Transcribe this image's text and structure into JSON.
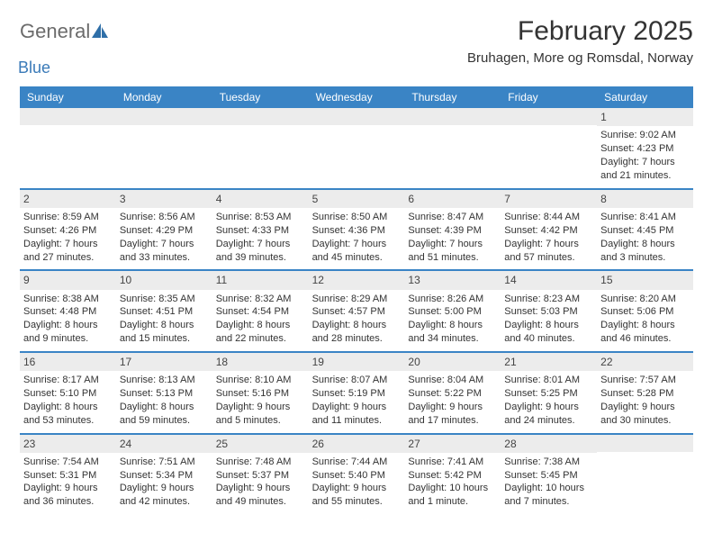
{
  "logo": {
    "text1": "General",
    "text2": "Blue"
  },
  "title": "February 2025",
  "location": "Bruhagen, More og Romsdal, Norway",
  "colors": {
    "header_bg": "#3a84c5",
    "header_text": "#ffffff",
    "daynum_bg": "#ececec",
    "border": "#3a84c5",
    "body_text": "#333333",
    "logo_gray": "#6b6b6b",
    "logo_blue": "#3a7ab8"
  },
  "weekdays": [
    "Sunday",
    "Monday",
    "Tuesday",
    "Wednesday",
    "Thursday",
    "Friday",
    "Saturday"
  ],
  "weeks": [
    [
      {
        "n": "",
        "sr": "",
        "ss": "",
        "dl": ""
      },
      {
        "n": "",
        "sr": "",
        "ss": "",
        "dl": ""
      },
      {
        "n": "",
        "sr": "",
        "ss": "",
        "dl": ""
      },
      {
        "n": "",
        "sr": "",
        "ss": "",
        "dl": ""
      },
      {
        "n": "",
        "sr": "",
        "ss": "",
        "dl": ""
      },
      {
        "n": "",
        "sr": "",
        "ss": "",
        "dl": ""
      },
      {
        "n": "1",
        "sr": "Sunrise: 9:02 AM",
        "ss": "Sunset: 4:23 PM",
        "dl": "Daylight: 7 hours and 21 minutes."
      }
    ],
    [
      {
        "n": "2",
        "sr": "Sunrise: 8:59 AM",
        "ss": "Sunset: 4:26 PM",
        "dl": "Daylight: 7 hours and 27 minutes."
      },
      {
        "n": "3",
        "sr": "Sunrise: 8:56 AM",
        "ss": "Sunset: 4:29 PM",
        "dl": "Daylight: 7 hours and 33 minutes."
      },
      {
        "n": "4",
        "sr": "Sunrise: 8:53 AM",
        "ss": "Sunset: 4:33 PM",
        "dl": "Daylight: 7 hours and 39 minutes."
      },
      {
        "n": "5",
        "sr": "Sunrise: 8:50 AM",
        "ss": "Sunset: 4:36 PM",
        "dl": "Daylight: 7 hours and 45 minutes."
      },
      {
        "n": "6",
        "sr": "Sunrise: 8:47 AM",
        "ss": "Sunset: 4:39 PM",
        "dl": "Daylight: 7 hours and 51 minutes."
      },
      {
        "n": "7",
        "sr": "Sunrise: 8:44 AM",
        "ss": "Sunset: 4:42 PM",
        "dl": "Daylight: 7 hours and 57 minutes."
      },
      {
        "n": "8",
        "sr": "Sunrise: 8:41 AM",
        "ss": "Sunset: 4:45 PM",
        "dl": "Daylight: 8 hours and 3 minutes."
      }
    ],
    [
      {
        "n": "9",
        "sr": "Sunrise: 8:38 AM",
        "ss": "Sunset: 4:48 PM",
        "dl": "Daylight: 8 hours and 9 minutes."
      },
      {
        "n": "10",
        "sr": "Sunrise: 8:35 AM",
        "ss": "Sunset: 4:51 PM",
        "dl": "Daylight: 8 hours and 15 minutes."
      },
      {
        "n": "11",
        "sr": "Sunrise: 8:32 AM",
        "ss": "Sunset: 4:54 PM",
        "dl": "Daylight: 8 hours and 22 minutes."
      },
      {
        "n": "12",
        "sr": "Sunrise: 8:29 AM",
        "ss": "Sunset: 4:57 PM",
        "dl": "Daylight: 8 hours and 28 minutes."
      },
      {
        "n": "13",
        "sr": "Sunrise: 8:26 AM",
        "ss": "Sunset: 5:00 PM",
        "dl": "Daylight: 8 hours and 34 minutes."
      },
      {
        "n": "14",
        "sr": "Sunrise: 8:23 AM",
        "ss": "Sunset: 5:03 PM",
        "dl": "Daylight: 8 hours and 40 minutes."
      },
      {
        "n": "15",
        "sr": "Sunrise: 8:20 AM",
        "ss": "Sunset: 5:06 PM",
        "dl": "Daylight: 8 hours and 46 minutes."
      }
    ],
    [
      {
        "n": "16",
        "sr": "Sunrise: 8:17 AM",
        "ss": "Sunset: 5:10 PM",
        "dl": "Daylight: 8 hours and 53 minutes."
      },
      {
        "n": "17",
        "sr": "Sunrise: 8:13 AM",
        "ss": "Sunset: 5:13 PM",
        "dl": "Daylight: 8 hours and 59 minutes."
      },
      {
        "n": "18",
        "sr": "Sunrise: 8:10 AM",
        "ss": "Sunset: 5:16 PM",
        "dl": "Daylight: 9 hours and 5 minutes."
      },
      {
        "n": "19",
        "sr": "Sunrise: 8:07 AM",
        "ss": "Sunset: 5:19 PM",
        "dl": "Daylight: 9 hours and 11 minutes."
      },
      {
        "n": "20",
        "sr": "Sunrise: 8:04 AM",
        "ss": "Sunset: 5:22 PM",
        "dl": "Daylight: 9 hours and 17 minutes."
      },
      {
        "n": "21",
        "sr": "Sunrise: 8:01 AM",
        "ss": "Sunset: 5:25 PM",
        "dl": "Daylight: 9 hours and 24 minutes."
      },
      {
        "n": "22",
        "sr": "Sunrise: 7:57 AM",
        "ss": "Sunset: 5:28 PM",
        "dl": "Daylight: 9 hours and 30 minutes."
      }
    ],
    [
      {
        "n": "23",
        "sr": "Sunrise: 7:54 AM",
        "ss": "Sunset: 5:31 PM",
        "dl": "Daylight: 9 hours and 36 minutes."
      },
      {
        "n": "24",
        "sr": "Sunrise: 7:51 AM",
        "ss": "Sunset: 5:34 PM",
        "dl": "Daylight: 9 hours and 42 minutes."
      },
      {
        "n": "25",
        "sr": "Sunrise: 7:48 AM",
        "ss": "Sunset: 5:37 PM",
        "dl": "Daylight: 9 hours and 49 minutes."
      },
      {
        "n": "26",
        "sr": "Sunrise: 7:44 AM",
        "ss": "Sunset: 5:40 PM",
        "dl": "Daylight: 9 hours and 55 minutes."
      },
      {
        "n": "27",
        "sr": "Sunrise: 7:41 AM",
        "ss": "Sunset: 5:42 PM",
        "dl": "Daylight: 10 hours and 1 minute."
      },
      {
        "n": "28",
        "sr": "Sunrise: 7:38 AM",
        "ss": "Sunset: 5:45 PM",
        "dl": "Daylight: 10 hours and 7 minutes."
      },
      {
        "n": "",
        "sr": "",
        "ss": "",
        "dl": ""
      }
    ]
  ]
}
